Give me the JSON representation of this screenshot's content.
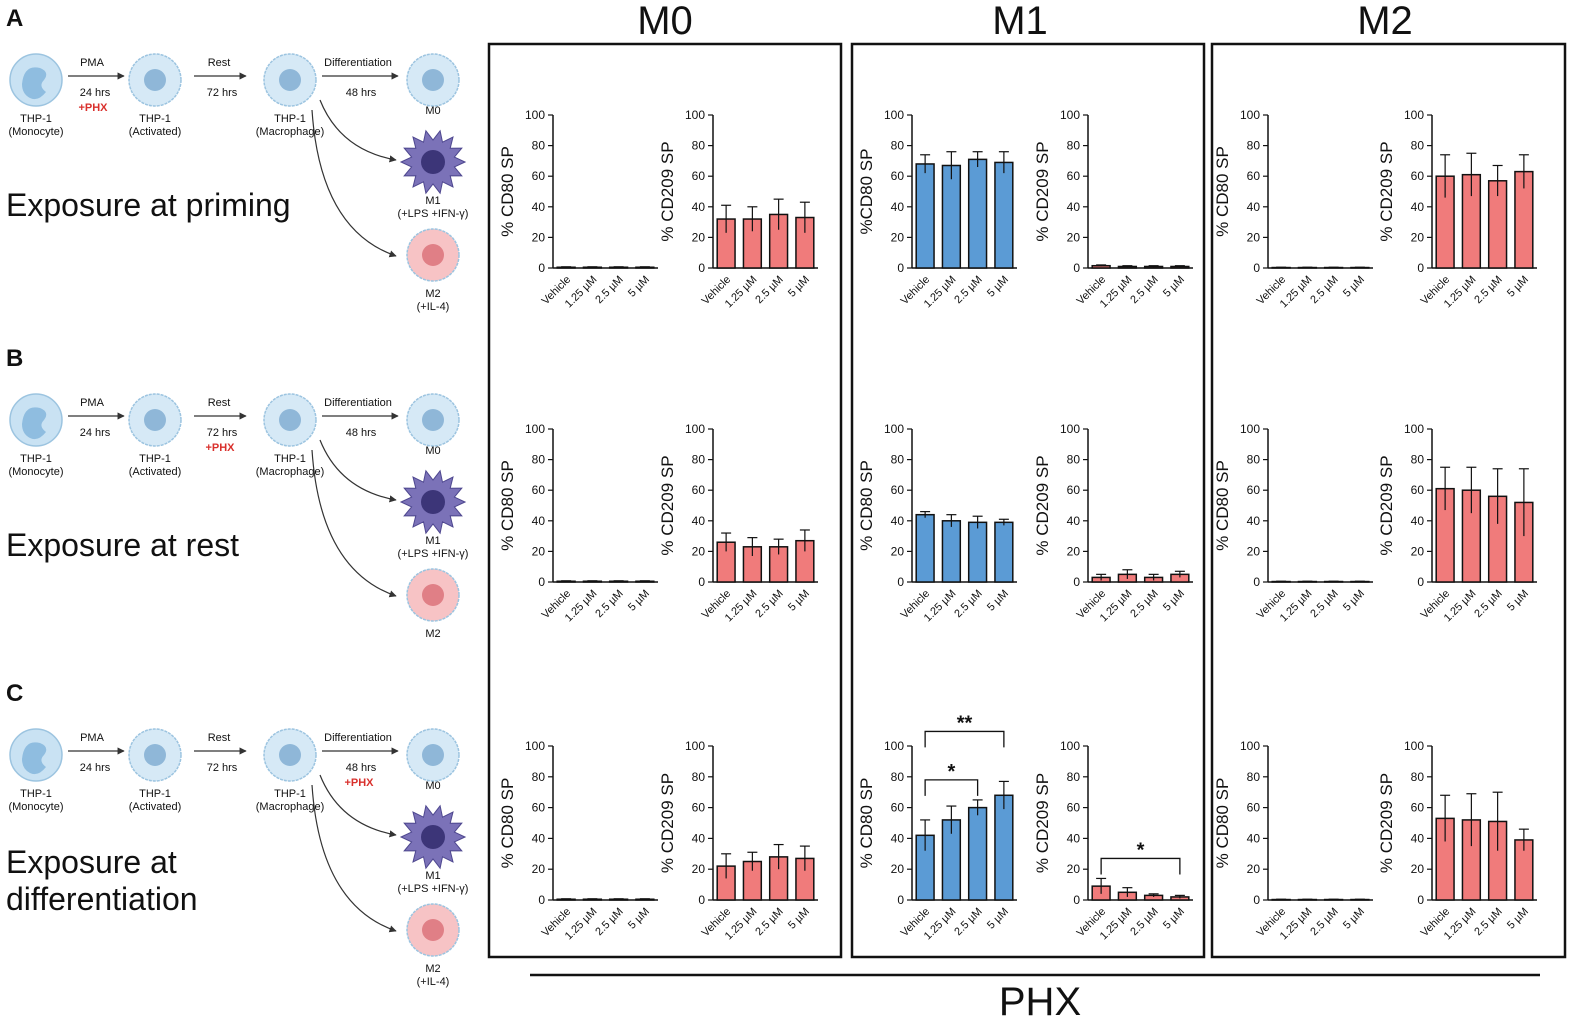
{
  "figure": {
    "headers": [
      "M0",
      "M1",
      "M2"
    ],
    "xlabel": "PHX",
    "panels": [
      {
        "letter": "A",
        "title_lines": [
          "Exposure at priming"
        ],
        "pma": "PMA",
        "pma_time": "24 hrs",
        "pma_note": "+PHX",
        "rest": "Rest",
        "rest_time": "72 hrs",
        "diff": "Differentiation",
        "diff_time": "48 hrs",
        "cells": [
          {
            "name": "THP-1",
            "sub": "(Monocyte)"
          },
          {
            "name": "THP-1",
            "sub": "(Activated)"
          },
          {
            "name": "THP-1",
            "sub": "(Macrophage)"
          },
          {
            "name": "M0"
          },
          {
            "name": "M1",
            "sub": "(+LPS +IFN-γ)"
          },
          {
            "name": "M2",
            "sub": "(+IL-4)"
          }
        ]
      },
      {
        "letter": "B",
        "title_lines": [
          "Exposure at rest"
        ],
        "pma": "PMA",
        "pma_time": "24 hrs",
        "rest": "Rest",
        "rest_time": "72 hrs",
        "rest_note": "+PHX",
        "diff": "Differentiation",
        "diff_time": "48 hrs",
        "cells": [
          {
            "name": "THP-1",
            "sub": "(Monocyte)"
          },
          {
            "name": "THP-1",
            "sub": "(Activated)"
          },
          {
            "name": "THP-1",
            "sub": "(Macrophage)"
          },
          {
            "name": "M0"
          },
          {
            "name": "M1",
            "sub": "(+LPS +IFN-γ)"
          },
          {
            "name": "M2"
          }
        ]
      },
      {
        "letter": "C",
        "title_lines": [
          "Exposure at",
          "differentiation"
        ],
        "pma": "PMA",
        "pma_time": "24 hrs",
        "rest": "Rest",
        "rest_time": "72 hrs",
        "diff": "Differentiation",
        "diff_time": "48 hrs",
        "diff_note": "+PHX",
        "cells": [
          {
            "name": "THP-1",
            "sub": "(Monocyte)"
          },
          {
            "name": "THP-1",
            "sub": "(Activated)"
          },
          {
            "name": "THP-1",
            "sub": "(Macrophage)"
          },
          {
            "name": "M0"
          },
          {
            "name": "M1",
            "sub": "(+LPS +IFN-γ)"
          },
          {
            "name": "M2",
            "sub": "(+IL-4)"
          }
        ]
      }
    ]
  },
  "chart_data": [
    {
      "type": "bar",
      "ylabel": "% CD80 SP",
      "categories": [
        "Vehicle",
        "1.25 µM",
        "2.5 µM",
        "5 µM"
      ],
      "values": [
        0.5,
        0.5,
        0.5,
        0.5
      ],
      "errors": [
        0.3,
        0.3,
        0.3,
        0.3
      ],
      "color": "#f07b7b",
      "ylim": [
        0,
        100
      ],
      "yticks": [
        0,
        20,
        40,
        60,
        80,
        100
      ]
    },
    {
      "type": "bar",
      "ylabel": "% CD209 SP",
      "categories": [
        "Vehicle",
        "1.25 µM",
        "2.5 µM",
        "5 µM"
      ],
      "values": [
        32,
        32,
        35,
        33
      ],
      "errors": [
        9,
        8,
        10,
        10
      ],
      "color": "#f07b7b",
      "ylim": [
        0,
        100
      ],
      "yticks": [
        0,
        20,
        40,
        60,
        80,
        100
      ]
    },
    {
      "type": "bar",
      "ylabel": "%CD80 SP",
      "categories": [
        "Vehicle",
        "1.25 µM",
        "2.5 µM",
        "5 µM"
      ],
      "values": [
        68,
        67,
        71,
        69
      ],
      "errors": [
        6,
        9,
        5,
        7
      ],
      "color": "#5b9bd5",
      "ylim": [
        0,
        100
      ],
      "yticks": [
        0,
        20,
        40,
        60,
        80,
        100
      ]
    },
    {
      "type": "bar",
      "ylabel": "% CD209 SP",
      "categories": [
        "Vehicle",
        "1.25 µM",
        "2.5 µM",
        "5 µM"
      ],
      "values": [
        1.5,
        1,
        1,
        1
      ],
      "errors": [
        0.5,
        0.5,
        0.5,
        0.5
      ],
      "color": "#f07b7b",
      "ylim": [
        0,
        100
      ],
      "yticks": [
        0,
        20,
        40,
        60,
        80,
        100
      ]
    },
    {
      "type": "bar",
      "ylabel": "% CD80 SP",
      "categories": [
        "Vehicle",
        "1.25 µM",
        "2.5 µM",
        "5 µM"
      ],
      "values": [
        0.3,
        0.3,
        0.3,
        0.3
      ],
      "errors": [
        0.2,
        0.2,
        0.2,
        0.2
      ],
      "color": "#f07b7b",
      "ylim": [
        0,
        100
      ],
      "yticks": [
        0,
        20,
        40,
        60,
        80,
        100
      ]
    },
    {
      "type": "bar",
      "ylabel": "% CD209 SP",
      "categories": [
        "Vehicle",
        "1.25 µM",
        "2.5 µM",
        "5 µM"
      ],
      "values": [
        60,
        61,
        57,
        63
      ],
      "errors": [
        14,
        14,
        10,
        11
      ],
      "color": "#f07b7b",
      "ylim": [
        0,
        100
      ],
      "yticks": [
        0,
        20,
        40,
        60,
        80,
        100
      ]
    },
    {
      "type": "bar",
      "ylabel": "% CD80 SP",
      "categories": [
        "Vehicle",
        "1.25 µM",
        "2.5 µM",
        "5 µM"
      ],
      "values": [
        0.5,
        0.5,
        0.5,
        0.5
      ],
      "errors": [
        0.3,
        0.3,
        0.3,
        0.3
      ],
      "color": "#f07b7b",
      "ylim": [
        0,
        100
      ],
      "yticks": [
        0,
        20,
        40,
        60,
        80,
        100
      ]
    },
    {
      "type": "bar",
      "ylabel": "% CD209 SP",
      "categories": [
        "Vehicle",
        "1.25 µM",
        "2.5 µM",
        "5 µM"
      ],
      "values": [
        26,
        23,
        23,
        27
      ],
      "errors": [
        6,
        6,
        5,
        7
      ],
      "color": "#f07b7b",
      "ylim": [
        0,
        100
      ],
      "yticks": [
        0,
        20,
        40,
        60,
        80,
        100
      ]
    },
    {
      "type": "bar",
      "ylabel": "% CD80 SP",
      "categories": [
        "Vehicle",
        "1.25 µM",
        "2.5 µM",
        "5 µM"
      ],
      "values": [
        44,
        40,
        39,
        39
      ],
      "errors": [
        2,
        4,
        4,
        2
      ],
      "color": "#5b9bd5",
      "ylim": [
        0,
        100
      ],
      "yticks": [
        0,
        20,
        40,
        60,
        80,
        100
      ]
    },
    {
      "type": "bar",
      "ylabel": "% CD209 SP",
      "categories": [
        "Vehicle",
        "1.25 µM",
        "2.5 µM",
        "5 µM"
      ],
      "values": [
        3,
        5,
        3,
        5
      ],
      "errors": [
        2,
        3,
        2,
        2
      ],
      "color": "#f07b7b",
      "ylim": [
        0,
        100
      ],
      "yticks": [
        0,
        20,
        40,
        60,
        80,
        100
      ]
    },
    {
      "type": "bar",
      "ylabel": "% CD80 SP",
      "categories": [
        "Vehicle",
        "1.25 µM",
        "2.5 µM",
        "5 µM"
      ],
      "values": [
        0.3,
        0.3,
        0.3,
        0.3
      ],
      "errors": [
        0.2,
        0.2,
        0.2,
        0.2
      ],
      "color": "#f07b7b",
      "ylim": [
        0,
        100
      ],
      "yticks": [
        0,
        20,
        40,
        60,
        80,
        100
      ]
    },
    {
      "type": "bar",
      "ylabel": "% CD209 SP",
      "categories": [
        "Vehicle",
        "1.25 µM",
        "2.5 µM",
        "5 µM"
      ],
      "values": [
        61,
        60,
        56,
        52
      ],
      "errors": [
        14,
        15,
        18,
        22
      ],
      "color": "#f07b7b",
      "ylim": [
        0,
        100
      ],
      "yticks": [
        0,
        20,
        40,
        60,
        80,
        100
      ]
    },
    {
      "type": "bar",
      "ylabel": "% CD80 SP",
      "categories": [
        "Vehicle",
        "1.25 µM",
        "2.5 µM",
        "5 µM"
      ],
      "values": [
        0.5,
        0.5,
        0.5,
        0.5
      ],
      "errors": [
        0.3,
        0.3,
        0.3,
        0.3
      ],
      "color": "#f07b7b",
      "ylim": [
        0,
        100
      ],
      "yticks": [
        0,
        20,
        40,
        60,
        80,
        100
      ]
    },
    {
      "type": "bar",
      "ylabel": "% CD209 SP",
      "categories": [
        "Vehicle",
        "1.25 µM",
        "2.5 µM",
        "5 µM"
      ],
      "values": [
        22,
        25,
        28,
        27
      ],
      "errors": [
        8,
        6,
        8,
        8
      ],
      "color": "#f07b7b",
      "ylim": [
        0,
        100
      ],
      "yticks": [
        0,
        20,
        40,
        60,
        80,
        100
      ]
    },
    {
      "type": "bar",
      "ylabel": "% CD80 SP",
      "categories": [
        "Vehicle",
        "1.25 µM",
        "2.5 µM",
        "5 µM"
      ],
      "values": [
        42,
        52,
        60,
        68
      ],
      "errors": [
        10,
        9,
        5,
        9
      ],
      "color": "#5b9bd5",
      "ylim": [
        0,
        100
      ],
      "yticks": [
        0,
        20,
        40,
        60,
        80,
        100
      ],
      "annotations": [
        {
          "label": "*",
          "from": "Vehicle",
          "to": "2.5 µM"
        },
        {
          "label": "**",
          "from": "Vehicle",
          "to": "5 µM"
        }
      ]
    },
    {
      "type": "bar",
      "ylabel": "% CD209 SP",
      "categories": [
        "Vehicle",
        "1.25 µM",
        "2.5 µM",
        "5 µM"
      ],
      "values": [
        9,
        5,
        3,
        2
      ],
      "errors": [
        5,
        3,
        1,
        1
      ],
      "color": "#f07b7b",
      "ylim": [
        0,
        100
      ],
      "yticks": [
        0,
        20,
        40,
        60,
        80,
        100
      ],
      "annotations": [
        {
          "label": "*",
          "from": "Vehicle",
          "to": "5 µM"
        }
      ]
    },
    {
      "type": "bar",
      "ylabel": "% CD80 SP",
      "categories": [
        "Vehicle",
        "1.25 µM",
        "2.5 µM",
        "5 µM"
      ],
      "values": [
        0.3,
        0.3,
        0.3,
        0.3
      ],
      "errors": [
        0.2,
        0.2,
        0.2,
        0.2
      ],
      "color": "#f07b7b",
      "ylim": [
        0,
        100
      ],
      "yticks": [
        0,
        20,
        40,
        60,
        80,
        100
      ]
    },
    {
      "type": "bar",
      "ylabel": "% CD209 SP",
      "categories": [
        "Vehicle",
        "1.25 µM",
        "2.5 µM",
        "5 µM"
      ],
      "values": [
        53,
        52,
        51,
        39
      ],
      "errors": [
        15,
        17,
        19,
        7
      ],
      "color": "#f07b7b",
      "ylim": [
        0,
        100
      ],
      "yticks": [
        0,
        20,
        40,
        60,
        80,
        100
      ]
    }
  ]
}
